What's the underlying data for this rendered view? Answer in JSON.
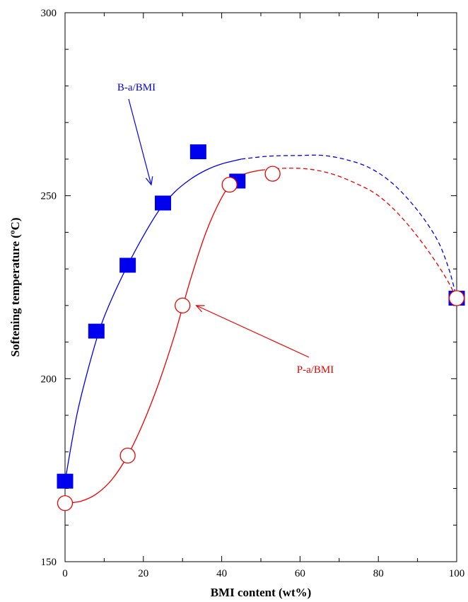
{
  "chart_data": {
    "type": "scatter",
    "title": "",
    "xlabel": "BMI content (wt%)",
    "ylabel": "Softening temperature (ºC)",
    "xlim": [
      0,
      100
    ],
    "ylim": [
      150,
      300
    ],
    "x_ticks": [
      0,
      20,
      40,
      60,
      80,
      100
    ],
    "y_ticks": [
      150,
      200,
      250,
      300
    ],
    "x_minor_step": 10,
    "y_minor_step": 10,
    "grid": false,
    "series": [
      {
        "name": "B-a/BMI",
        "marker": "filled-square",
        "color": "#0000ee",
        "points": [
          {
            "x": 0,
            "y": 172
          },
          {
            "x": 8,
            "y": 213
          },
          {
            "x": 16,
            "y": 231
          },
          {
            "x": 25,
            "y": 248
          },
          {
            "x": 34,
            "y": 262
          },
          {
            "x": 44,
            "y": 254
          },
          {
            "x": 100,
            "y": 222
          }
        ],
        "fit_solid": [
          [
            0,
            172
          ],
          [
            3,
            190
          ],
          [
            6,
            203
          ],
          [
            9,
            214
          ],
          [
            12,
            222
          ],
          [
            16,
            231
          ],
          [
            20,
            239
          ],
          [
            24,
            246
          ],
          [
            28,
            251
          ],
          [
            32,
            254.5
          ],
          [
            36,
            257
          ],
          [
            40,
            258.7
          ],
          [
            45,
            260
          ]
        ],
        "fit_dashed": [
          [
            45,
            260
          ],
          [
            52,
            260.8
          ],
          [
            60,
            261
          ],
          [
            66,
            261
          ],
          [
            72,
            259.8
          ],
          [
            78,
            257.5
          ],
          [
            84,
            253
          ],
          [
            90,
            246
          ],
          [
            95,
            238
          ],
          [
            98,
            230
          ],
          [
            100,
            222
          ]
        ]
      },
      {
        "name": "P-a/BMI",
        "marker": "open-circle",
        "color": "#ee0000",
        "points": [
          {
            "x": 0,
            "y": 166
          },
          {
            "x": 16,
            "y": 179
          },
          {
            "x": 30,
            "y": 220
          },
          {
            "x": 42,
            "y": 253
          },
          {
            "x": 53,
            "y": 256
          },
          {
            "x": 100,
            "y": 222
          }
        ],
        "fit_solid": [
          [
            0,
            166
          ],
          [
            4,
            166.5
          ],
          [
            8,
            168.5
          ],
          [
            12,
            172.5
          ],
          [
            16,
            179
          ],
          [
            20,
            188
          ],
          [
            24,
            199
          ],
          [
            28,
            212
          ],
          [
            32,
            227
          ],
          [
            36,
            240
          ],
          [
            40,
            249.5
          ],
          [
            43,
            254
          ],
          [
            46,
            256
          ],
          [
            50,
            257
          ]
        ],
        "fit_dashed": [
          [
            50,
            257
          ],
          [
            56,
            257.5
          ],
          [
            62,
            257.3
          ],
          [
            68,
            256
          ],
          [
            74,
            253.5
          ],
          [
            80,
            250
          ],
          [
            86,
            244
          ],
          [
            92,
            236
          ],
          [
            97,
            228
          ],
          [
            100,
            222
          ]
        ]
      }
    ],
    "annotations": [
      {
        "text": "B-a/BMI",
        "series": 0,
        "arrow_to": {
          "x": 22,
          "y": 253
        }
      },
      {
        "text": "P-a/BMI",
        "series": 1,
        "arrow_to": {
          "x": 33.5,
          "y": 220
        }
      }
    ]
  }
}
